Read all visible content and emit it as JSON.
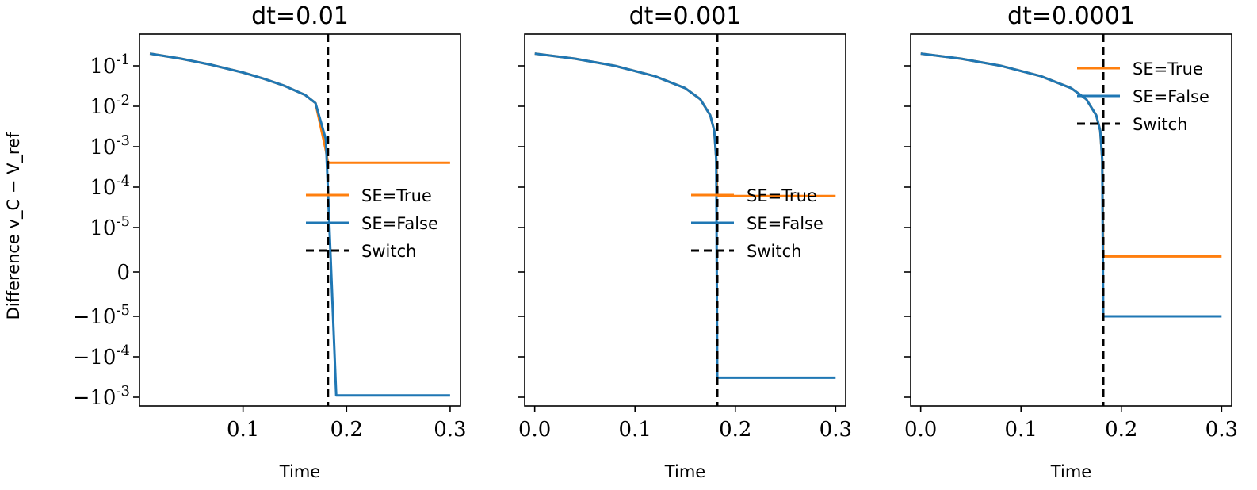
{
  "chart_data": {
    "type": "line",
    "ylabel": "Difference v_C − V_ref",
    "xlabel": "Time",
    "yscale": "symlog",
    "y_tick_labels": [
      "10^-1",
      "10^-2",
      "10^-3",
      "10^-4",
      "10^-5",
      "0",
      "−10^-5",
      "−10^-4",
      "−10^-3"
    ],
    "colors": {
      "SE=True": "#ff7f0e",
      "SE=False": "#1f77b4",
      "Switch": "#000000"
    },
    "panels": [
      {
        "title": "dt=0.01",
        "xlim": [
          0.0,
          0.31
        ],
        "x_ticks": [
          0.1,
          0.2,
          0.3
        ],
        "x_tick_labels": [
          "0.1",
          "0.2",
          "0.3"
        ],
        "show_y_tick_labels": true,
        "switch_x": 0.182,
        "legend": {
          "placement": "center-right",
          "entries": [
            "SE=True",
            "SE=False",
            "Switch"
          ]
        },
        "series": [
          {
            "name": "SE=True",
            "x": [
              0.01,
              0.04,
              0.07,
              0.1,
              0.12,
              0.14,
              0.16,
              0.17,
              0.18,
              0.182,
              0.3
            ],
            "y": [
              0.2,
              0.15,
              0.105,
              0.068,
              0.048,
              0.032,
              0.019,
              0.012,
              0.0008,
              0.0004,
              0.0004
            ]
          },
          {
            "name": "SE=False",
            "x": [
              0.01,
              0.04,
              0.07,
              0.1,
              0.12,
              0.14,
              0.16,
              0.17,
              0.18,
              0.19,
              0.3
            ],
            "y": [
              0.2,
              0.15,
              0.105,
              0.068,
              0.048,
              0.032,
              0.019,
              0.012,
              0.0015,
              -0.0009,
              -0.0009
            ]
          }
        ]
      },
      {
        "title": "dt=0.001",
        "xlim": [
          -0.01,
          0.31
        ],
        "x_ticks": [
          0.0,
          0.1,
          0.2,
          0.3
        ],
        "x_tick_labels": [
          "0.0",
          "0.1",
          "0.2",
          "0.3"
        ],
        "show_y_tick_labels": false,
        "switch_x": 0.182,
        "legend": {
          "placement": "center-right",
          "entries": [
            "SE=True",
            "SE=False",
            "Switch"
          ]
        },
        "series": [
          {
            "name": "SE=True",
            "x": [
              0.0,
              0.04,
              0.08,
              0.12,
              0.15,
              0.165,
              0.175,
              0.179,
              0.181,
              0.182,
              0.3
            ],
            "y": [
              0.2,
              0.15,
              0.1,
              0.055,
              0.028,
              0.015,
              0.006,
              0.0025,
              0.0005,
              6e-05,
              6e-05
            ]
          },
          {
            "name": "SE=False",
            "x": [
              0.0,
              0.04,
              0.08,
              0.12,
              0.15,
              0.165,
              0.175,
              0.179,
              0.181,
              0.182,
              0.3
            ],
            "y": [
              0.2,
              0.15,
              0.1,
              0.055,
              0.028,
              0.015,
              0.006,
              0.0025,
              0.0005,
              -0.00033,
              -0.00033
            ]
          }
        ]
      },
      {
        "title": "dt=0.0001",
        "xlim": [
          -0.01,
          0.31
        ],
        "x_ticks": [
          0.0,
          0.1,
          0.2,
          0.3
        ],
        "x_tick_labels": [
          "0.0",
          "0.1",
          "0.2",
          "0.3"
        ],
        "show_y_tick_labels": false,
        "switch_x": 0.182,
        "legend": {
          "placement": "upper-right",
          "entries": [
            "SE=True",
            "SE=False",
            "Switch"
          ]
        },
        "series": [
          {
            "name": "SE=True",
            "x": [
              0.0,
              0.04,
              0.08,
              0.12,
              0.15,
              0.165,
              0.175,
              0.179,
              0.181,
              0.182,
              0.3
            ],
            "y": [
              0.2,
              0.15,
              0.1,
              0.055,
              0.028,
              0.015,
              0.006,
              0.0025,
              0.0005,
              3.5e-06,
              3.5e-06
            ]
          },
          {
            "name": "SE=False",
            "x": [
              0.0,
              0.04,
              0.08,
              0.12,
              0.15,
              0.165,
              0.175,
              0.179,
              0.181,
              0.182,
              0.3
            ],
            "y": [
              0.2,
              0.15,
              0.1,
              0.055,
              0.028,
              0.015,
              0.006,
              0.0025,
              0.0005,
              -1e-05,
              -1e-05
            ]
          }
        ]
      }
    ]
  }
}
